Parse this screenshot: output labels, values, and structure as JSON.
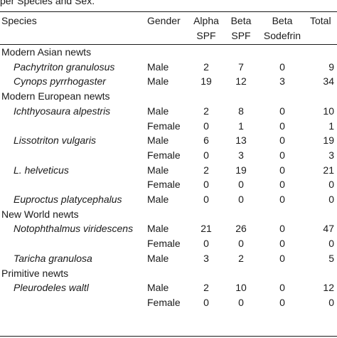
{
  "caption": "per Species and Sex.",
  "headers": {
    "species": "Species",
    "gender": "Gender",
    "alpha_1": "Alpha",
    "alpha_2": "SPF",
    "beta_1": "Beta",
    "beta_2": "SPF",
    "sodefrin_1": "Beta",
    "sodefrin_2": "Sodefrin",
    "total": "Total"
  },
  "groups": [
    {
      "name": "Modern Asian newts",
      "species": [
        {
          "name": "Pachytriton granulosus",
          "rows": [
            {
              "gender": "Male",
              "alpha": "2",
              "beta": "7",
              "sodefrin": "0",
              "total": "9"
            }
          ]
        },
        {
          "name": "Cynops pyrrhogaster",
          "rows": [
            {
              "gender": "Male",
              "alpha": "19",
              "beta": "12",
              "sodefrin": "3",
              "total": "34"
            }
          ]
        }
      ]
    },
    {
      "name": "Modern European newts",
      "species": [
        {
          "name": "Ichthyosaura alpestris",
          "rows": [
            {
              "gender": "Male",
              "alpha": "2",
              "beta": "8",
              "sodefrin": "0",
              "total": "10"
            },
            {
              "gender": "Female",
              "alpha": "0",
              "beta": "1",
              "sodefrin": "0",
              "total": "1"
            }
          ]
        },
        {
          "name": "Lissotriton vulgaris",
          "rows": [
            {
              "gender": "Male",
              "alpha": "6",
              "beta": "13",
              "sodefrin": "0",
              "total": "19"
            },
            {
              "gender": "Female",
              "alpha": "0",
              "beta": "3",
              "sodefrin": "0",
              "total": "3"
            }
          ]
        },
        {
          "name": "L. helveticus",
          "rows": [
            {
              "gender": "Male",
              "alpha": "2",
              "beta": "19",
              "sodefrin": "0",
              "total": "21"
            },
            {
              "gender": "Female",
              "alpha": "0",
              "beta": "0",
              "sodefrin": "0",
              "total": "0"
            }
          ]
        },
        {
          "name": "Euproctus platycephalus",
          "rows": [
            {
              "gender": "Male",
              "alpha": "0",
              "beta": "0",
              "sodefrin": "0",
              "total": "0"
            }
          ]
        }
      ]
    },
    {
      "name": "New World newts",
      "species": [
        {
          "name": "Notophthalmus viridescens",
          "rows": [
            {
              "gender": "Male",
              "alpha": "21",
              "beta": "26",
              "sodefrin": "0",
              "total": "47"
            },
            {
              "gender": "Female",
              "alpha": "0",
              "beta": "0",
              "sodefrin": "0",
              "total": "0"
            }
          ]
        },
        {
          "name": "Taricha granulosa",
          "rows": [
            {
              "gender": "Male",
              "alpha": "3",
              "beta": "2",
              "sodefrin": "0",
              "total": "5"
            }
          ]
        }
      ]
    },
    {
      "name": "Primitive newts",
      "species": [
        {
          "name": "Pleurodeles waltl",
          "rows": [
            {
              "gender": "Male",
              "alpha": "2",
              "beta": "10",
              "sodefrin": "0",
              "total": "12"
            },
            {
              "gender": "Female",
              "alpha": "0",
              "beta": "0",
              "sodefrin": "0",
              "total": "0"
            }
          ]
        }
      ]
    }
  ]
}
